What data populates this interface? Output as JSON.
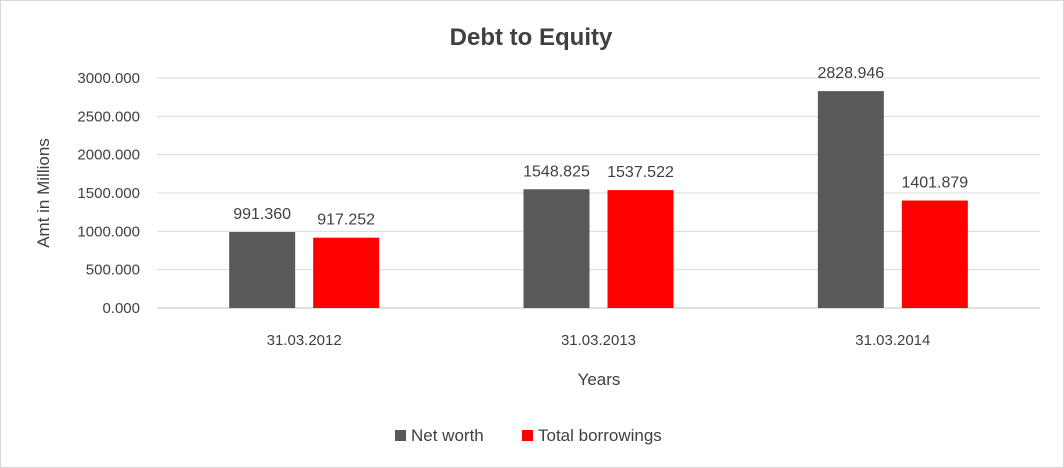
{
  "chart_data": {
    "type": "bar",
    "title": "Debt to Equity",
    "xlabel": "Years",
    "ylabel": "Amt in Millions",
    "categories": [
      "31.03.2012",
      "31.03.2013",
      "31.03.2014"
    ],
    "series": [
      {
        "name": "Net worth",
        "color": "#595959",
        "values": [
          991.36,
          1548.825,
          2828.946
        ],
        "labels": [
          "991.360",
          "1548.825",
          "2828.946"
        ]
      },
      {
        "name": "Total borrowings",
        "color": "#ff0000",
        "values": [
          917.252,
          1537.522,
          1401.879
        ],
        "labels": [
          "917.252",
          "1537.522",
          "1401.879"
        ]
      }
    ],
    "ylim": [
      0,
      3000
    ],
    "yticks": [
      0,
      500,
      1000,
      1500,
      2000,
      2500,
      3000
    ],
    "ytick_labels": [
      "0.000",
      "500.000",
      "1000.000",
      "1500.000",
      "2000.000",
      "2500.000",
      "3000.000"
    ],
    "grid": true,
    "legend_position": "bottom"
  }
}
